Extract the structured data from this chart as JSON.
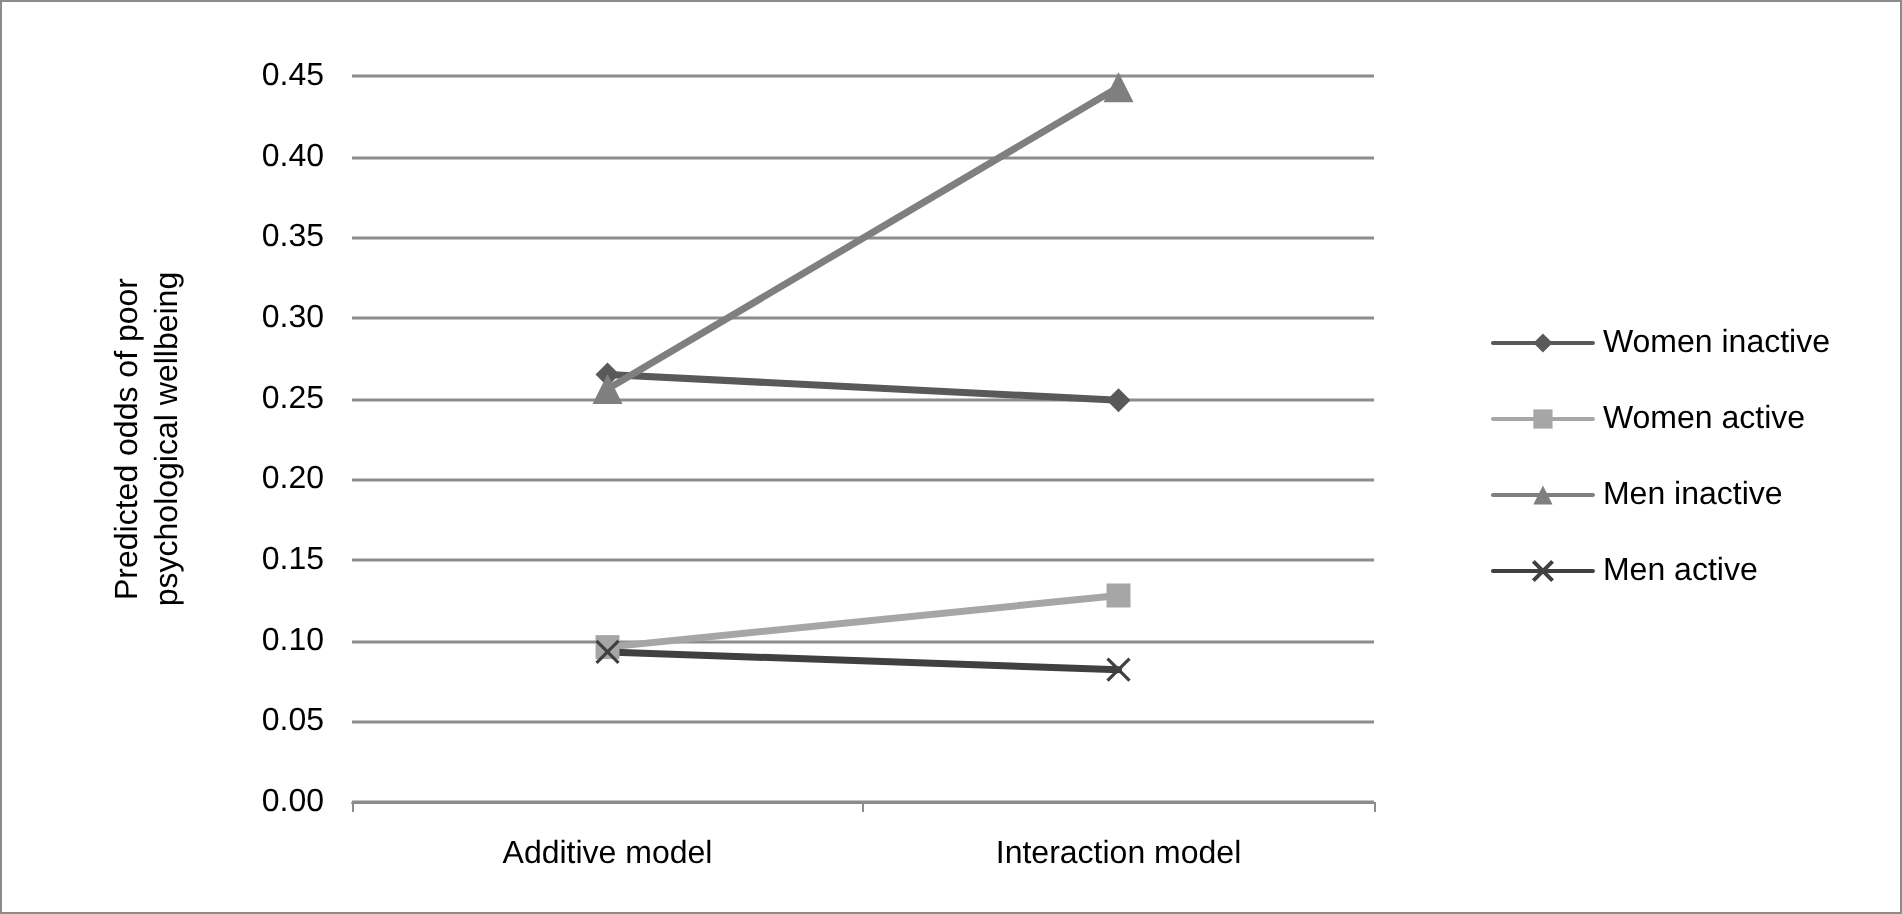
{
  "chart_data": {
    "type": "line",
    "ylabel": "Predicted odds of poor\npsychological wellbeing",
    "categories": [
      "Additive model",
      "Interaction model"
    ],
    "series": [
      {
        "name": "Women inactive",
        "color": "#595959",
        "marker": "diamond",
        "values": [
          0.265,
          0.249
        ]
      },
      {
        "name": "Women active",
        "color": "#a6a6a6",
        "marker": "square",
        "values": [
          0.096,
          0.128
        ]
      },
      {
        "name": "Men inactive",
        "color": "#7f7f7f",
        "marker": "triangle",
        "values": [
          0.256,
          0.443
        ]
      },
      {
        "name": "Men active",
        "color": "#404040",
        "marker": "cross",
        "values": [
          0.093,
          0.082
        ]
      }
    ],
    "ylim": [
      0,
      0.45
    ],
    "yticks": [
      {
        "value": 0,
        "label": "0.00"
      },
      {
        "value": 0.05,
        "label": "0.05"
      },
      {
        "value": 0.1,
        "label": "0.10"
      },
      {
        "value": 0.15,
        "label": "0.15"
      },
      {
        "value": 0.2,
        "label": "0.20"
      },
      {
        "value": 0.25,
        "label": "0.25"
      },
      {
        "value": 0.3,
        "label": "0.30"
      },
      {
        "value": 0.35,
        "label": "0.35"
      },
      {
        "value": 0.4,
        "label": "0.40"
      },
      {
        "value": 0.45,
        "label": "0.45"
      }
    ],
    "grid": "y",
    "legend": "right"
  }
}
